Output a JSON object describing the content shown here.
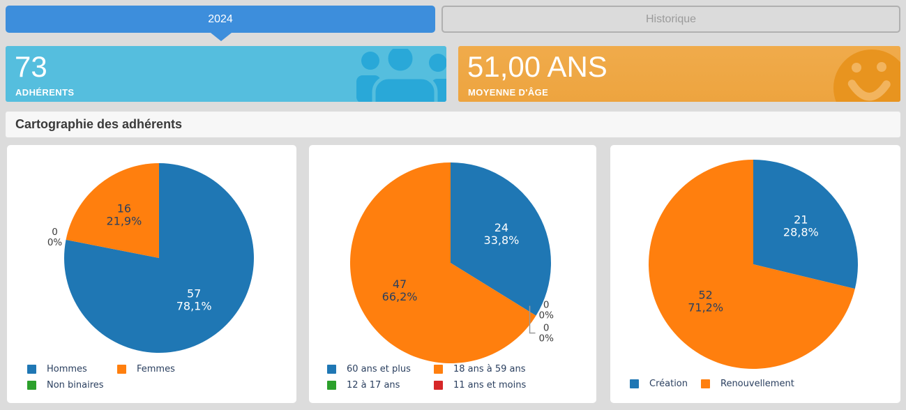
{
  "tabs": [
    {
      "label": "2024",
      "active": true
    },
    {
      "label": "Historique",
      "active": false
    }
  ],
  "stats": [
    {
      "value": "73",
      "label": "ADHÉRENTS",
      "icon": "people-group-icon",
      "bg": "#55BEDE",
      "icon_color": "#29A8D8"
    },
    {
      "value": "51,00 ANS",
      "label": "MOYENNE D'ÂGE",
      "icon": "smiley-icon",
      "bg": "#EFA846",
      "icon_color": "#E8941F",
      "icon_feature_color": "#F2B45E"
    }
  ],
  "section_title": "Cartographie des adhérents",
  "colors": {
    "page_bg": "#DCDCDC",
    "tab_active": "#3D8EDC",
    "tab_inactive_text": "#9B9B9B",
    "card_blue": "#55BEDE",
    "card_blue_icon": "#29A8D8",
    "card_orange": "#EFA846",
    "card_orange_icon": "#E8941F",
    "card_orange_icon_feature": "#F2B45E",
    "pie_blue": "#1F77B4",
    "pie_orange": "#FF7F0E",
    "pie_green": "#2CA02C",
    "pie_red": "#D62728",
    "chart_text_dark": "#2A3F5F"
  },
  "chart_data": [
    {
      "type": "pie",
      "labels": [
        "Hommes",
        "Femmes",
        "Non binaires"
      ],
      "values": [
        57,
        16,
        0
      ],
      "percents": [
        "78,1%",
        "21,9%",
        "0%"
      ],
      "colors": [
        "#1F77B4",
        "#FF7F0E",
        "#2CA02C"
      ],
      "legend_position": "bottom",
      "start_angle": "top",
      "direction": "clockwise"
    },
    {
      "type": "pie",
      "labels": [
        "60 ans et plus",
        "18 ans à 59 ans",
        "12 à 17 ans",
        "11 ans et moins"
      ],
      "values": [
        24,
        47,
        0,
        0
      ],
      "percents": [
        "33,8%",
        "66,2%",
        "0%",
        "0%"
      ],
      "colors": [
        "#1F77B4",
        "#FF7F0E",
        "#2CA02C",
        "#D62728"
      ],
      "legend_position": "bottom",
      "start_angle": "top",
      "direction": "clockwise"
    },
    {
      "type": "pie",
      "labels": [
        "Création",
        "Renouvellement"
      ],
      "values": [
        21,
        52
      ],
      "percents": [
        "28,8%",
        "71,2%"
      ],
      "colors": [
        "#1F77B4",
        "#FF7F0E"
      ],
      "legend_position": "bottom",
      "start_angle": "top",
      "direction": "clockwise"
    }
  ]
}
